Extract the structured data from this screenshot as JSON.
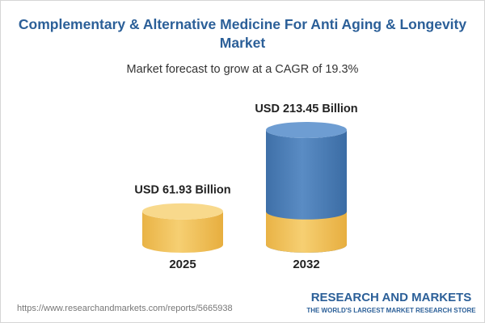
{
  "chart_data": {
    "type": "cylinder",
    "title": "Complementary & Alternative Medicine For Anti Aging & Longevity Market",
    "subtitle": "Market forecast to grow at a CAGR of 19.3%",
    "categories": [
      "2025",
      "2032"
    ],
    "values": [
      61.93,
      213.45
    ],
    "value_labels": [
      "USD 61.93 Billion",
      "USD 213.45 Billion"
    ],
    "colors": [
      "#f2c15a",
      "#4a7db6"
    ]
  },
  "footer": {
    "url": "https://www.researchandmarkets.com/reports/5665938",
    "brand": "RESEARCH AND MARKETS",
    "tagline": "THE WORLD'S LARGEST MARKET RESEARCH STORE"
  }
}
